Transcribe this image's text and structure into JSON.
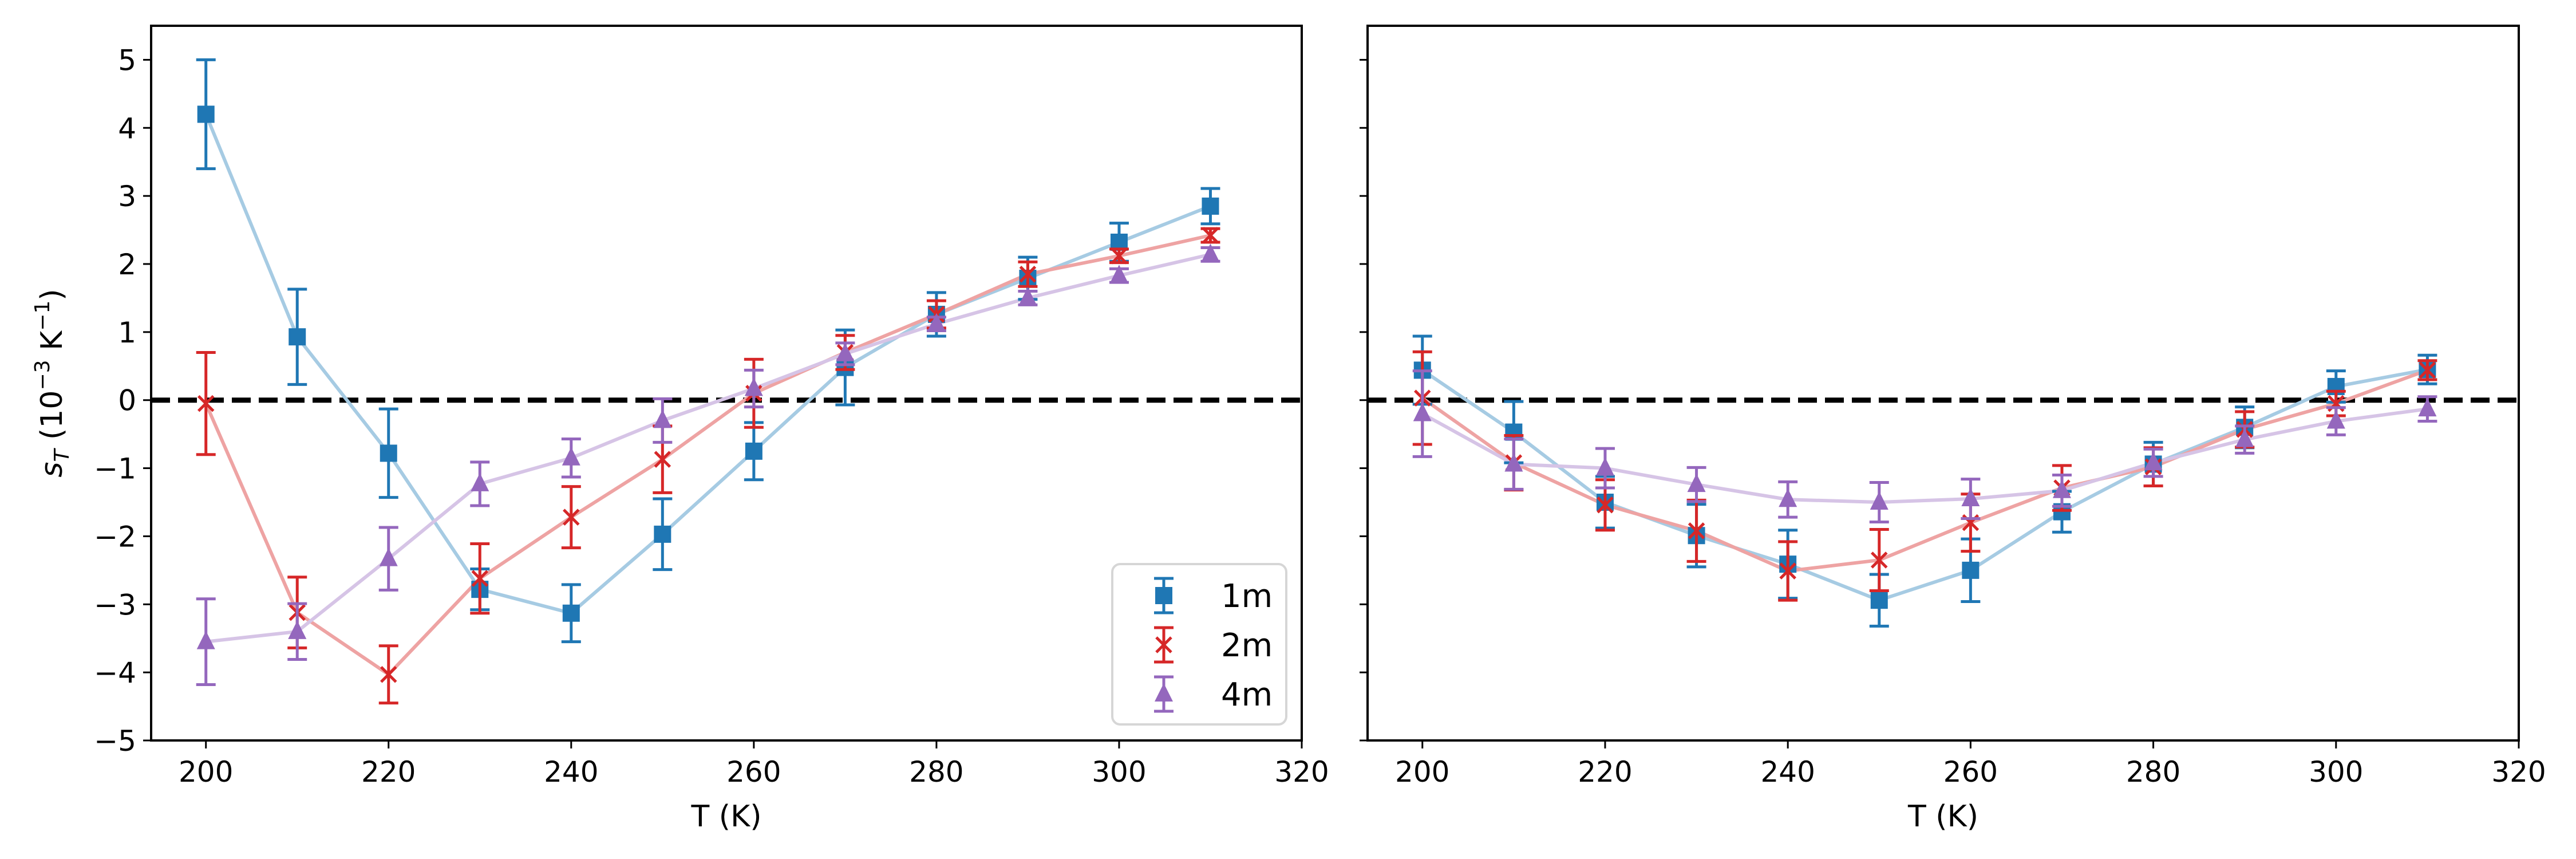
{
  "chart_data": [
    {
      "type": "line",
      "panel": "left",
      "xlabel": "T (K)",
      "ylabel_main": "s",
      "ylabel_sub": "T",
      "ylabel_rest": " (10",
      "ylabel_exp1": "−3",
      "ylabel_unit": " K",
      "ylabel_exp2": "−1",
      "ylabel_close": ")",
      "xlim": [
        194,
        320
      ],
      "ylim": [
        -5,
        5.5
      ],
      "xticks": [
        200,
        220,
        240,
        260,
        280,
        300,
        320
      ],
      "xtick_labels": [
        "200",
        "220",
        "240",
        "260",
        "280",
        "300",
        "320"
      ],
      "yticks": [
        -5,
        -4,
        -3,
        -2,
        -1,
        0,
        1,
        2,
        3,
        4,
        5
      ],
      "ytick_labels": [
        "−5",
        "−4",
        "−3",
        "−2",
        "−1",
        "0",
        "1",
        "2",
        "3",
        "4",
        "5"
      ],
      "reference_line": {
        "y": 0,
        "style": "dashed",
        "color": "#000000"
      },
      "legend": {
        "placement": "lower-right",
        "entries": [
          "1m",
          "2m",
          "4m"
        ]
      },
      "x": [
        200,
        210,
        220,
        230,
        240,
        250,
        260,
        270,
        280,
        290,
        300,
        310
      ],
      "series": [
        {
          "name": "1m",
          "marker": "square",
          "color": "#1f77b4",
          "line_color": "#a6cbe3",
          "values": [
            4.2,
            0.93,
            -0.78,
            -2.78,
            -3.13,
            -1.97,
            -0.75,
            0.48,
            1.26,
            1.79,
            2.32,
            2.85
          ],
          "errors": [
            0.8,
            0.7,
            0.65,
            0.3,
            0.42,
            0.52,
            0.42,
            0.55,
            0.32,
            0.31,
            0.28,
            0.26
          ]
        },
        {
          "name": "2m",
          "marker": "x",
          "color": "#d62728",
          "line_color": "#eea3a3",
          "values": [
            -0.05,
            -3.12,
            -4.03,
            -2.62,
            -1.72,
            -0.87,
            0.1,
            0.7,
            1.26,
            1.85,
            2.12,
            2.42
          ],
          "errors": [
            0.75,
            0.52,
            0.42,
            0.51,
            0.45,
            0.49,
            0.5,
            0.25,
            0.2,
            0.18,
            0.1,
            0.1
          ]
        },
        {
          "name": "4m",
          "marker": "triangle",
          "color": "#9467bd",
          "line_color": "#d6c4e6",
          "values": [
            -3.55,
            -3.4,
            -2.33,
            -1.23,
            -0.85,
            -0.3,
            0.17,
            0.68,
            1.12,
            1.5,
            1.83,
            2.14
          ],
          "errors": [
            0.63,
            0.41,
            0.46,
            0.32,
            0.28,
            0.32,
            0.27,
            0.16,
            0.1,
            0.1,
            0.1,
            0.1
          ]
        }
      ]
    },
    {
      "type": "line",
      "panel": "right",
      "xlabel": "T (K)",
      "xlim": [
        194,
        320
      ],
      "ylim": [
        -5,
        5.5
      ],
      "xticks": [
        200,
        220,
        240,
        260,
        280,
        300,
        320
      ],
      "xtick_labels": [
        "200",
        "220",
        "240",
        "260",
        "280",
        "300",
        "320"
      ],
      "yticks": [
        -5,
        -4,
        -3,
        -2,
        -1,
        0,
        1,
        2,
        3,
        4,
        5
      ],
      "reference_line": {
        "y": 0,
        "style": "dashed",
        "color": "#000000"
      },
      "x": [
        200,
        210,
        220,
        230,
        240,
        250,
        260,
        270,
        280,
        290,
        300,
        310
      ],
      "series": [
        {
          "name": "1m",
          "marker": "square",
          "color": "#1f77b4",
          "line_color": "#a6cbe3",
          "values": [
            0.44,
            -0.47,
            -1.5,
            -1.99,
            -2.41,
            -2.94,
            -2.5,
            -1.64,
            -0.94,
            -0.4,
            0.2,
            0.45
          ],
          "errors": [
            0.5,
            0.45,
            0.38,
            0.46,
            0.5,
            0.38,
            0.46,
            0.3,
            0.32,
            0.3,
            0.23,
            0.21
          ]
        },
        {
          "name": "2m",
          "marker": "x",
          "color": "#d62728",
          "line_color": "#eea3a3",
          "values": [
            0.03,
            -0.92,
            -1.54,
            -1.92,
            -2.51,
            -2.35,
            -1.8,
            -1.29,
            -0.98,
            -0.43,
            -0.05,
            0.44
          ],
          "errors": [
            0.68,
            0.4,
            0.37,
            0.45,
            0.43,
            0.45,
            0.42,
            0.33,
            0.28,
            0.26,
            0.18,
            0.14
          ]
        },
        {
          "name": "4m",
          "marker": "triangle",
          "color": "#9467bd",
          "line_color": "#d6c4e6",
          "values": [
            -0.2,
            -0.94,
            -1.0,
            -1.24,
            -1.46,
            -1.5,
            -1.45,
            -1.33,
            -0.92,
            -0.58,
            -0.31,
            -0.13
          ],
          "errors": [
            0.63,
            0.37,
            0.29,
            0.25,
            0.26,
            0.29,
            0.29,
            0.23,
            0.2,
            0.2,
            0.2,
            0.18
          ]
        }
      ]
    }
  ]
}
